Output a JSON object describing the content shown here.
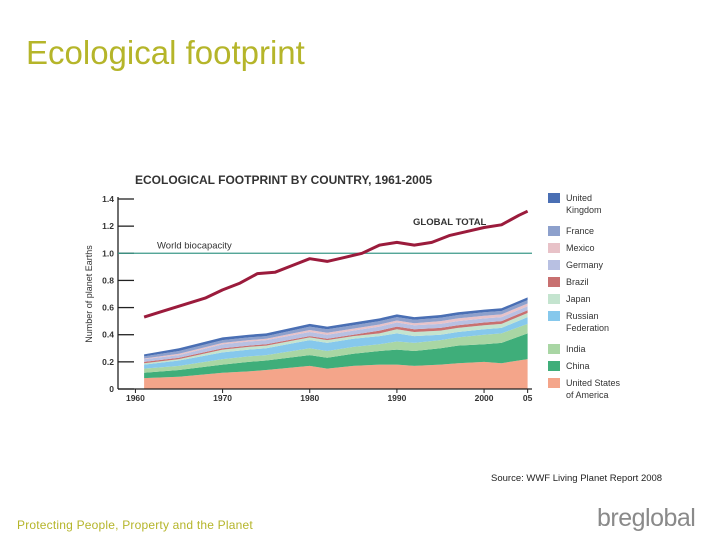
{
  "slide": {
    "title": "Ecological footprint",
    "source": "Source: WWF Living Planet Report 2008",
    "tagline": "Protecting People, Property and the Planet",
    "logo": {
      "part1": "bre",
      "part2": "global"
    }
  },
  "chart_data": {
    "type": "area",
    "title": "ECOLOGICAL FOOTPRINT BY COUNTRY, 1961-2005",
    "ylabel": "Number of planet Earths",
    "xlabel": "",
    "xlim": [
      1961,
      2005
    ],
    "ylim": [
      0,
      1.4
    ],
    "x_ticks": [
      "1960",
      "1970",
      "1980",
      "1990",
      "2000",
      "05"
    ],
    "x_tick_values": [
      1960,
      1970,
      1980,
      1990,
      2000,
      2005
    ],
    "y_ticks": [
      "0",
      "0.2",
      "0.4",
      "0.6",
      "0.8",
      "1.0",
      "1.2",
      "1.4"
    ],
    "y_tick_values": [
      0,
      0.2,
      0.4,
      0.6,
      0.8,
      1.0,
      1.2,
      1.4
    ],
    "stacked": true,
    "x": [
      1961,
      1965,
      1970,
      1973,
      1975,
      1980,
      1982,
      1985,
      1988,
      1990,
      1992,
      1995,
      1997,
      2000,
      2002,
      2005
    ],
    "series": [
      {
        "name": "United States of America",
        "color": "#f4a58a",
        "values": [
          0.08,
          0.09,
          0.12,
          0.13,
          0.14,
          0.17,
          0.15,
          0.17,
          0.18,
          0.18,
          0.17,
          0.18,
          0.19,
          0.2,
          0.19,
          0.22
        ]
      },
      {
        "name": "China",
        "color": "#3fae7a",
        "values": [
          0.04,
          0.05,
          0.06,
          0.07,
          0.07,
          0.08,
          0.08,
          0.09,
          0.1,
          0.11,
          0.11,
          0.12,
          0.13,
          0.13,
          0.15,
          0.19
        ]
      },
      {
        "name": "India",
        "color": "#a9d6a4",
        "values": [
          0.03,
          0.03,
          0.04,
          0.04,
          0.04,
          0.05,
          0.05,
          0.05,
          0.05,
          0.06,
          0.06,
          0.06,
          0.06,
          0.07,
          0.07,
          0.07
        ]
      },
      {
        "name": "Russian Federation",
        "color": "#86c8ec",
        "values": [
          0.03,
          0.04,
          0.05,
          0.05,
          0.05,
          0.06,
          0.06,
          0.06,
          0.06,
          0.06,
          0.05,
          0.04,
          0.04,
          0.04,
          0.04,
          0.05
        ]
      },
      {
        "name": "Japan",
        "color": "#c4e4cf",
        "values": [
          0.01,
          0.01,
          0.02,
          0.02,
          0.02,
          0.02,
          0.02,
          0.02,
          0.02,
          0.03,
          0.03,
          0.03,
          0.03,
          0.03,
          0.03,
          0.03
        ]
      },
      {
        "name": "Brazil",
        "color": "#c87070",
        "values": [
          0.01,
          0.01,
          0.01,
          0.01,
          0.01,
          0.01,
          0.01,
          0.01,
          0.02,
          0.02,
          0.02,
          0.02,
          0.02,
          0.02,
          0.02,
          0.02
        ]
      },
      {
        "name": "Germany",
        "color": "#b8c0e2",
        "values": [
          0.02,
          0.02,
          0.03,
          0.03,
          0.03,
          0.03,
          0.03,
          0.03,
          0.03,
          0.03,
          0.03,
          0.03,
          0.03,
          0.03,
          0.03,
          0.03
        ]
      },
      {
        "name": "Mexico",
        "color": "#e8c2c8",
        "values": [
          0.005,
          0.01,
          0.01,
          0.01,
          0.01,
          0.015,
          0.015,
          0.015,
          0.015,
          0.015,
          0.015,
          0.02,
          0.02,
          0.02,
          0.02,
          0.02
        ]
      },
      {
        "name": "France",
        "color": "#8da0cc",
        "values": [
          0.015,
          0.02,
          0.02,
          0.02,
          0.02,
          0.025,
          0.025,
          0.025,
          0.025,
          0.025,
          0.025,
          0.025,
          0.025,
          0.025,
          0.025,
          0.025
        ]
      },
      {
        "name": "United Kingdom",
        "color": "#4a6fb4",
        "values": [
          0.015,
          0.02,
          0.02,
          0.02,
          0.02,
          0.02,
          0.02,
          0.02,
          0.02,
          0.02,
          0.02,
          0.02,
          0.02,
          0.02,
          0.02,
          0.02
        ]
      }
    ],
    "global_total": {
      "label": "GLOBAL TOTAL",
      "color": "#9b1b3c",
      "x": [
        1961,
        1963,
        1965,
        1968,
        1970,
        1972,
        1974,
        1976,
        1978,
        1980,
        1982,
        1984,
        1986,
        1988,
        1990,
        1992,
        1994,
        1996,
        1998,
        2000,
        2002,
        2004,
        2005
      ],
      "values": [
        0.53,
        0.57,
        0.61,
        0.67,
        0.73,
        0.78,
        0.85,
        0.86,
        0.91,
        0.96,
        0.94,
        0.97,
        1.0,
        1.06,
        1.08,
        1.06,
        1.08,
        1.13,
        1.16,
        1.19,
        1.21,
        1.28,
        1.31
      ]
    },
    "biocapacity": {
      "label": "World biocapacity",
      "value": 1.0,
      "color": "#3d9a8a"
    },
    "legend": {
      "placement": "right",
      "entries": [
        {
          "label": "United Kingdom",
          "lines": [
            "United",
            "Kingdom"
          ],
          "color": "#4a6fb4"
        },
        {
          "label": "France",
          "lines": [
            "France"
          ],
          "color": "#8da0cc"
        },
        {
          "label": "Mexico",
          "lines": [
            "Mexico"
          ],
          "color": "#e8c2c8"
        },
        {
          "label": "Germany",
          "lines": [
            "Germany"
          ],
          "color": "#b8c0e2"
        },
        {
          "label": "Brazil",
          "lines": [
            "Brazil"
          ],
          "color": "#c87070"
        },
        {
          "label": "Japan",
          "lines": [
            "Japan"
          ],
          "color": "#c4e4cf"
        },
        {
          "label": "Russian Federation",
          "lines": [
            "Russian",
            "Federation"
          ],
          "color": "#86c8ec"
        },
        {
          "label": "India",
          "lines": [
            "India"
          ],
          "color": "#a9d6a4"
        },
        {
          "label": "China",
          "lines": [
            "China"
          ],
          "color": "#3fae7a"
        },
        {
          "label": "United States of America",
          "lines": [
            "United States",
            "of America"
          ],
          "color": "#f4a58a"
        }
      ]
    },
    "grid": false
  }
}
